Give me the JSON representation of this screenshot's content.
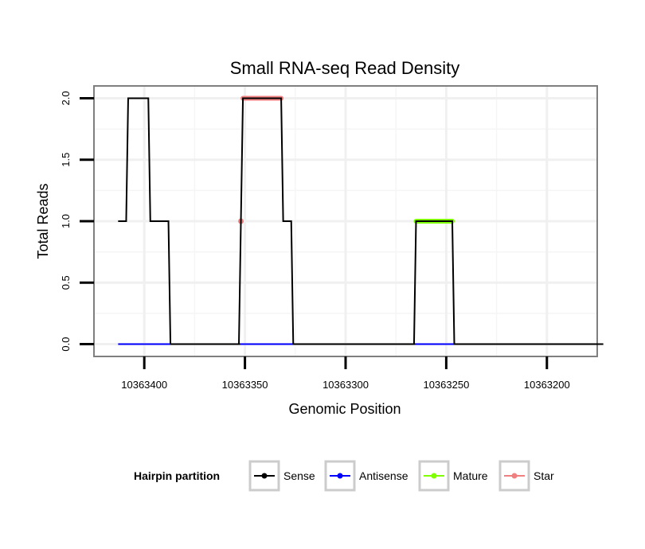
{
  "chart_data": {
    "type": "line",
    "title": "Small RNA-seq Read Density",
    "xlabel": "Genomic Position",
    "ylabel": "Total Reads",
    "x_reversed": true,
    "xlim": [
      10363425,
      10363175
    ],
    "ylim": [
      -0.1,
      2.1
    ],
    "x_ticks": [
      10363400,
      10363350,
      10363300,
      10363250,
      10363200
    ],
    "x_tick_labels": [
      "10363400",
      "10363350",
      "10363300",
      "10363250",
      "10363200"
    ],
    "y_ticks": [
      0,
      0.5,
      1,
      1.5,
      2
    ],
    "y_tick_labels": [
      "0.0",
      "0.5",
      "1.0",
      "1.5",
      "2.0"
    ],
    "grid": true,
    "series": [
      {
        "name": "Sense",
        "color": "#000000",
        "points": [
          [
            10363413,
            1
          ],
          [
            10363409,
            1
          ],
          [
            10363408,
            2
          ],
          [
            10363398,
            2
          ],
          [
            10363397,
            1
          ],
          [
            10363388,
            1
          ],
          [
            10363387,
            0
          ],
          [
            10363353,
            0
          ],
          [
            10363352,
            1
          ],
          [
            10363351,
            2
          ],
          [
            10363332,
            2
          ],
          [
            10363331,
            1
          ],
          [
            10363327,
            1
          ],
          [
            10363326,
            0
          ],
          [
            10363266,
            0
          ],
          [
            10363265,
            1
          ],
          [
            10363247,
            1
          ],
          [
            10363246,
            0
          ],
          [
            10363172,
            0
          ]
        ]
      },
      {
        "name": "Antisense",
        "color": "#0000ff",
        "points": [
          [
            10363413,
            0
          ],
          [
            10363172,
            0
          ]
        ]
      },
      {
        "name": "Mature",
        "color": "#7fff00",
        "points": [
          [
            10363265,
            1
          ],
          [
            10363247,
            1
          ]
        ]
      },
      {
        "name": "Star",
        "color": "#f08080",
        "points": [
          [
            10363352,
            1
          ],
          [
            10363351,
            2
          ],
          [
            10363332,
            2
          ]
        ]
      }
    ],
    "legend": {
      "title": "Hairpin partition",
      "position": "bottom",
      "entries": [
        "Sense",
        "Antisense",
        "Mature",
        "Star"
      ]
    }
  }
}
